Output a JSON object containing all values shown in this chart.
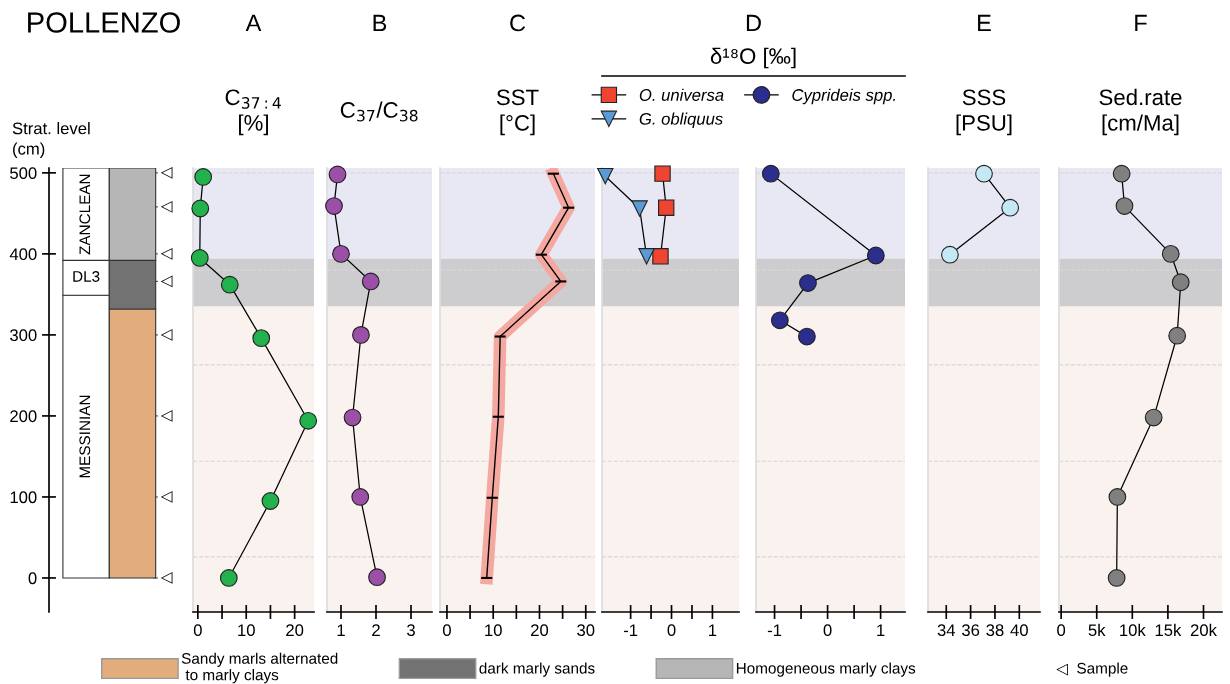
{
  "chart_data": [
    {
      "type": "bar",
      "title": "POLLENZO",
      "ylabel": "Strat. level\n(cm)",
      "categories": [
        null,
        null
      ],
      "stacked": true,
      "ylim": [
        -42,
        506
      ],
      "yticks": [
        500,
        400,
        300,
        200,
        100,
        0
      ],
      "legend": "bottom",
      "ref_lines": [
        {
          "axis": "y",
          "value": 500,
          "label": "◁"
        },
        {
          "axis": "y",
          "value": 458,
          "label": "◁"
        },
        {
          "axis": "y",
          "value": 400,
          "label": "◁"
        },
        {
          "axis": "y",
          "value": 366,
          "label": "◁"
        },
        {
          "axis": "y",
          "value": 300,
          "label": "◁"
        },
        {
          "axis": "y",
          "value": 200,
          "label": "◁"
        },
        {
          "axis": "y",
          "value": 100,
          "label": "◁"
        },
        {
          "axis": "y",
          "value": 0,
          "label": "◁"
        }
      ],
      "series": [
        {
          "name": "Sandy marls alternated\n to marly clays",
          "color": "#e3ac7c",
          "colors": [
            "#ffffff",
            "#e3ac7c"
          ],
          "values": [
            349,
            332
          ],
          "value_labels": [
            "MESSINIAN",
            null
          ]
        },
        {
          "name": "dark marly sands",
          "color": "#727272",
          "colors": [
            "#ffffff",
            "#727272"
          ],
          "values": [
            43,
            60
          ],
          "value_labels": [
            "DL3",
            null
          ]
        },
        {
          "name": "Homogeneous marly clays",
          "color": "#b6b6b6",
          "colors": [
            "#ffffff",
            "#b6b6b6"
          ],
          "values": [
            114,
            114
          ],
          "value_labels": [
            "ZANCLEAN",
            null
          ]
        }
      ],
      "annotations": [
        "◁  Sample"
      ]
    },
    {
      "type": "line",
      "title": "A",
      "subtitle": "C$_{37:4}$\n[%]",
      "xlim": [
        -1,
        24
      ],
      "xticks": [
        0,
        {
          "value": 5,
          "label": null
        },
        10,
        {
          "value": 15,
          "label": null
        },
        20
      ],
      "ylim": [
        -42,
        506
      ],
      "tick_labels": "x",
      "marker": "circle",
      "bands": [
        {
          "axis": "y",
          "from": 394,
          "to": 506,
          "color": "#e8e8f5"
        },
        {
          "axis": "y",
          "from": 335,
          "to": 394,
          "color": "#cdcdd0"
        },
        {
          "axis": "y",
          "from": -42,
          "to": 335,
          "color": "#faf2ee"
        }
      ],
      "ref_lines": [
        {
          "axis": "y",
          "value": 500,
          "color": "#d8d8d8",
          "line_style": "dashed"
        },
        {
          "axis": "y",
          "value": 380,
          "color": "#d8d8d8",
          "line_style": "dashed"
        },
        {
          "axis": "y",
          "value": 263,
          "color": "#d8d8d8",
          "line_style": "dashed"
        },
        {
          "axis": "y",
          "value": 144,
          "color": "#d8d8d8",
          "line_style": "dashed"
        },
        {
          "axis": "y",
          "value": 26,
          "color": "#d8d8d8",
          "line_style": "dashed"
        }
      ],
      "series": [
        {
          "color": "#22b14c",
          "x": [
            1.1,
            0.5,
            0.4,
            6.6,
            13.1,
            22.8,
            15.0,
            6.4
          ],
          "values": [
            495,
            456,
            395,
            362,
            296,
            194,
            95,
            0
          ]
        }
      ]
    },
    {
      "type": "line",
      "title": "B",
      "subtitle": "C$_{37}$/C$_{38}$",
      "xlim": [
        0.6,
        3.6
      ],
      "xticks": [
        1,
        2,
        3
      ],
      "ylim": [
        -42,
        506
      ],
      "tick_labels": "x",
      "marker": "circle",
      "bands": [
        {
          "axis": "y",
          "from": 394,
          "to": 506,
          "color": "#e8e8f5"
        },
        {
          "axis": "y",
          "from": 335,
          "to": 394,
          "color": "#cdcdd0"
        },
        {
          "axis": "y",
          "from": -42,
          "to": 335,
          "color": "#faf2ee"
        }
      ],
      "ref_lines": [
        {
          "axis": "y",
          "value": 500,
          "color": "#d8d8d8",
          "line_style": "dashed"
        },
        {
          "axis": "y",
          "value": 380,
          "color": "#d8d8d8",
          "line_style": "dashed"
        },
        {
          "axis": "y",
          "value": 263,
          "color": "#d8d8d8",
          "line_style": "dashed"
        },
        {
          "axis": "y",
          "value": 144,
          "color": "#d8d8d8",
          "line_style": "dashed"
        },
        {
          "axis": "y",
          "value": 26,
          "color": "#d8d8d8",
          "line_style": "dashed"
        }
      ],
      "series": [
        {
          "color": "#9b4fa6",
          "x": [
            0.9,
            0.8,
            1.0,
            1.85,
            1.57,
            1.33,
            1.55,
            2.03
          ],
          "values": [
            498,
            459,
            400,
            366,
            300,
            198,
            100,
            1
          ]
        }
      ]
    },
    {
      "type": "line",
      "title": "C",
      "subtitle": "SST\n[°C]",
      "xlim": [
        -1.5,
        32
      ],
      "xticks": [
        0,
        {
          "value": 5,
          "label": null
        },
        10,
        {
          "value": 15,
          "label": null
        },
        20,
        {
          "value": 25,
          "label": null
        },
        30
      ],
      "ylim": [
        -42,
        506
      ],
      "tick_labels": "x",
      "marker": "none",
      "bands": [
        {
          "axis": "y",
          "from": 394,
          "to": 506,
          "color": "#e8e8f5"
        },
        {
          "axis": "y",
          "from": 335,
          "to": 394,
          "color": "#cdcdd0"
        },
        {
          "axis": "y",
          "from": -42,
          "to": 335,
          "color": "#faf2ee"
        }
      ],
      "ref_lines": [
        {
          "axis": "y",
          "value": 500,
          "color": "#d8d8d8",
          "line_style": "dashed"
        },
        {
          "axis": "y",
          "value": 380,
          "color": "#d8d8d8",
          "line_style": "dashed"
        },
        {
          "axis": "y",
          "value": 263,
          "color": "#d8d8d8",
          "line_style": "dashed"
        },
        {
          "axis": "y",
          "value": 144,
          "color": "#d8d8d8",
          "line_style": "dashed"
        },
        {
          "axis": "y",
          "value": 26,
          "color": "#d8d8d8",
          "line_style": "dashed"
        }
      ],
      "series": [
        {
          "color": "#f4a8a0",
          "x": [
            23.0,
            26.3,
            20.4,
            24.6,
            11.5,
            11.1,
            9.8,
            8.6
          ],
          "values": [
            499,
            457,
            399,
            366,
            298,
            199,
            99,
            0
          ],
          "xerrors": [
            1.2,
            1.2,
            1.2,
            1.2,
            1.2,
            1.2,
            1.2,
            1.2
          ]
        }
      ]
    },
    {
      "type": "line",
      "title": "D",
      "subtitle": "δ¹⁸O [‰]",
      "xlim": [
        -1.7,
        1.65
      ],
      "xticks": [
        -1,
        {
          "value": -0.5,
          "label": null
        },
        0,
        {
          "value": 0.5,
          "label": null
        },
        1
      ],
      "ylim": [
        -42,
        506
      ],
      "tick_labels": "x",
      "legend": "top",
      "bands": [
        {
          "axis": "y",
          "from": 394,
          "to": 506,
          "color": "#e8e8f5"
        },
        {
          "axis": "y",
          "from": 335,
          "to": 394,
          "color": "#cdcdd0"
        },
        {
          "axis": "y",
          "from": -42,
          "to": 335,
          "color": "#faf2ee"
        }
      ],
      "ref_lines": [
        {
          "axis": "y",
          "value": 500,
          "color": "#d8d8d8",
          "line_style": "dashed"
        },
        {
          "axis": "y",
          "value": 380,
          "color": "#d8d8d8",
          "line_style": "dashed"
        },
        {
          "axis": "y",
          "value": 263,
          "color": "#d8d8d8",
          "line_style": "dashed"
        },
        {
          "axis": "y",
          "value": 144,
          "color": "#d8d8d8",
          "line_style": "dashed"
        },
        {
          "axis": "y",
          "value": 26,
          "color": "#d8d8d8",
          "line_style": "dashed"
        }
      ],
      "series": [
        {
          "name": "O. universa",
          "marker": "square",
          "color": "#ee4431",
          "x": [
            -0.22,
            -0.13,
            -0.27
          ],
          "values": [
            499,
            457,
            397
          ]
        },
        {
          "name": "G. obliquus",
          "marker": "triangle",
          "color": "#5b9bd5",
          "x": [
            -1.62,
            -0.78,
            -0.61
          ],
          "values": [
            496,
            456,
            397
          ]
        }
      ]
    },
    {
      "type": "line",
      "xlim": [
        -1.35,
        1.46
      ],
      "xticks": [
        -1,
        {
          "value": -0.5,
          "label": null
        },
        0,
        {
          "value": 0.5,
          "label": null
        },
        1
      ],
      "ylim": [
        -42,
        506
      ],
      "tick_labels": "x",
      "legend": "top",
      "marker": "circle",
      "bands": [
        {
          "axis": "y",
          "from": 394,
          "to": 506,
          "color": "#e8e8f5"
        },
        {
          "axis": "y",
          "from": 335,
          "to": 394,
          "color": "#cdcdd0"
        },
        {
          "axis": "y",
          "from": -42,
          "to": 335,
          "color": "#faf2ee"
        }
      ],
      "ref_lines": [
        {
          "axis": "y",
          "value": 500,
          "color": "#d8d8d8",
          "line_style": "dashed"
        },
        {
          "axis": "y",
          "value": 380,
          "color": "#d8d8d8",
          "line_style": "dashed"
        },
        {
          "axis": "y",
          "value": 263,
          "color": "#d8d8d8",
          "line_style": "dashed"
        },
        {
          "axis": "y",
          "value": 144,
          "color": "#d8d8d8",
          "line_style": "dashed"
        },
        {
          "axis": "y",
          "value": 26,
          "color": "#d8d8d8",
          "line_style": "dashed"
        }
      ],
      "series": [
        {
          "name": "Cyprideis spp.",
          "color": "#2b2e8c",
          "x": [
            -1.07,
            0.91,
            -0.37,
            -0.9,
            -0.39
          ],
          "values": [
            499,
            398,
            364,
            318,
            298
          ]
        }
      ]
    },
    {
      "type": "line",
      "title": "E",
      "subtitle": "SSS\n[PSU]",
      "xlim": [
        32.5,
        41.7
      ],
      "xticks": [
        34,
        36,
        38,
        40
      ],
      "ylim": [
        -42,
        506
      ],
      "tick_labels": "x",
      "marker": "circle",
      "bands": [
        {
          "axis": "y",
          "from": 394,
          "to": 506,
          "color": "#e8e8f5"
        },
        {
          "axis": "y",
          "from": 335,
          "to": 394,
          "color": "#cdcdd0"
        },
        {
          "axis": "y",
          "from": -42,
          "to": 335,
          "color": "#faf2ee"
        }
      ],
      "ref_lines": [
        {
          "axis": "y",
          "value": 500,
          "color": "#d8d8d8",
          "line_style": "dashed"
        },
        {
          "axis": "y",
          "value": 380,
          "color": "#d8d8d8",
          "line_style": "dashed"
        },
        {
          "axis": "y",
          "value": 263,
          "color": "#d8d8d8",
          "line_style": "dashed"
        },
        {
          "axis": "y",
          "value": 144,
          "color": "#d8d8d8",
          "line_style": "dashed"
        },
        {
          "axis": "y",
          "value": 26,
          "color": "#d8d8d8",
          "line_style": "dashed"
        }
      ],
      "series": [
        {
          "color": "#c5e8f5",
          "x": [
            37.1,
            39.25,
            34.3
          ],
          "values": [
            499,
            457,
            399
          ]
        }
      ]
    },
    {
      "type": "line",
      "title": "F",
      "subtitle": "Sed.rate\n[cm/Ma]",
      "xlim": [
        -300,
        22600
      ],
      "xticks": [
        0,
        {
          "value": 5000,
          "label": "5k"
        },
        {
          "value": 10000,
          "label": "10k"
        },
        {
          "value": 15000,
          "label": "15k"
        },
        {
          "value": 20000,
          "label": "20k"
        }
      ],
      "ylim": [
        -42,
        506
      ],
      "tick_labels": "x",
      "marker": "circle",
      "bands": [
        {
          "axis": "y",
          "from": 394,
          "to": 506,
          "color": "#e8e8f5"
        },
        {
          "axis": "y",
          "from": 335,
          "to": 394,
          "color": "#cdcdd0"
        },
        {
          "axis": "y",
          "from": -42,
          "to": 335,
          "color": "#faf2ee"
        }
      ],
      "ref_lines": [
        {
          "axis": "y",
          "value": 500,
          "color": "#d8d8d8",
          "line_style": "dashed"
        },
        {
          "axis": "y",
          "value": 380,
          "color": "#d8d8d8",
          "line_style": "dashed"
        },
        {
          "axis": "y",
          "value": 263,
          "color": "#d8d8d8",
          "line_style": "dashed"
        },
        {
          "axis": "y",
          "value": 144,
          "color": "#d8d8d8",
          "line_style": "dashed"
        },
        {
          "axis": "y",
          "value": 26,
          "color": "#d8d8d8",
          "line_style": "dashed"
        }
      ],
      "series": [
        {
          "color": "#808080",
          "x": [
            8500,
            8900,
            15400,
            16800,
            16300,
            13000,
            7900,
            7800
          ],
          "values": [
            499,
            459,
            400,
            365,
            299,
            198,
            100,
            0
          ]
        }
      ]
    }
  ]
}
